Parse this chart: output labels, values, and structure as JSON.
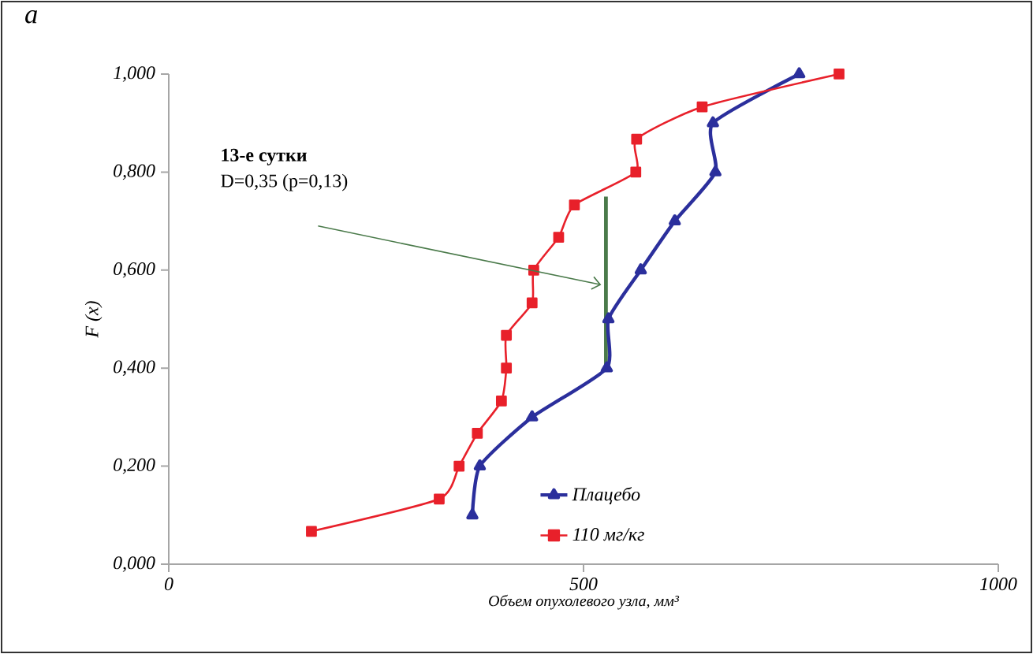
{
  "chart_data": {
    "type": "line",
    "xlabel": "Объем опухолевого узла, мм³",
    "ylabel": "F (x)",
    "xlim": [
      0,
      1000
    ],
    "ylim": [
      0,
      1
    ],
    "xticks": [
      0,
      500,
      1000
    ],
    "yticks": [
      {
        "value": 0,
        "label": "0,000"
      },
      {
        "value": 0.2,
        "label": "0,200"
      },
      {
        "value": 0.4,
        "label": "0,400"
      },
      {
        "value": 0.6,
        "label": "0,600"
      },
      {
        "value": 0.8,
        "label": "0,800"
      },
      {
        "value": 1,
        "label": "1,000"
      }
    ],
    "legend": "bottom right",
    "grid": false,
    "series": [
      {
        "name": "Плацебо",
        "color": "#2b2f9c",
        "marker": "triangle",
        "x": [
          366,
          375,
          438,
          528,
          530,
          569,
          610,
          659,
          656,
          760
        ],
        "values": [
          0.1,
          0.2,
          0.3,
          0.4,
          0.5,
          0.6,
          0.7,
          0.8,
          0.9,
          1.0
        ]
      },
      {
        "name": "110 мг/кг",
        "color": "#e8202a",
        "marker": "square",
        "x": [
          172,
          326,
          350,
          372,
          401,
          407,
          407,
          438,
          440,
          470,
          489,
          563,
          564,
          643,
          808
        ],
        "values": [
          0.067,
          0.133,
          0.2,
          0.267,
          0.333,
          0.4,
          0.467,
          0.533,
          0.6,
          0.667,
          0.733,
          0.8,
          0.867,
          0.933,
          1.0
        ]
      },
      {
        "color": "#4a7a4a",
        "marker": "none",
        "x": [
          527,
          527
        ],
        "values": [
          0.4,
          0.75
        ]
      }
    ],
    "annotations": [
      "a",
      "13-е сутки",
      "D=0,35 (p=0,13)"
    ]
  }
}
